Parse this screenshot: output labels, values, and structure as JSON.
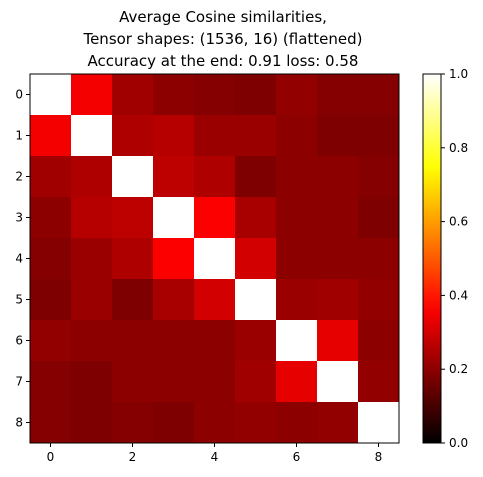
{
  "chart_data": {
    "type": "heatmap",
    "title_lines": [
      "Average Cosine similarities,",
      "Tensor shapes: (1536, 16) (flattened)",
      "Accuracy at the end: 0.91 loss: 0.58"
    ],
    "x_ticks": [
      "0",
      "2",
      "4",
      "6",
      "8"
    ],
    "y_ticks": [
      "0",
      "1",
      "2",
      "3",
      "4",
      "5",
      "6",
      "7",
      "8"
    ],
    "colorbar_ticks": [
      "0.0",
      "0.2",
      "0.4",
      "0.6",
      "0.8",
      "1.0"
    ],
    "colormap": "hot",
    "vmin": 0.0,
    "vmax": 1.0,
    "values": [
      [
        1.0,
        0.35,
        0.23,
        0.2,
        0.19,
        0.18,
        0.21,
        0.19,
        0.19
      ],
      [
        0.35,
        1.0,
        0.25,
        0.26,
        0.22,
        0.22,
        0.2,
        0.18,
        0.18
      ],
      [
        0.23,
        0.25,
        1.0,
        0.27,
        0.25,
        0.18,
        0.2,
        0.2,
        0.19
      ],
      [
        0.2,
        0.26,
        0.27,
        1.0,
        0.36,
        0.24,
        0.2,
        0.2,
        0.18
      ],
      [
        0.19,
        0.22,
        0.25,
        0.36,
        1.0,
        0.3,
        0.2,
        0.2,
        0.2
      ],
      [
        0.18,
        0.22,
        0.18,
        0.24,
        0.3,
        1.0,
        0.22,
        0.23,
        0.21
      ],
      [
        0.21,
        0.2,
        0.2,
        0.2,
        0.2,
        0.22,
        1.0,
        0.33,
        0.2
      ],
      [
        0.19,
        0.18,
        0.2,
        0.2,
        0.2,
        0.23,
        0.33,
        1.0,
        0.21
      ],
      [
        0.19,
        0.18,
        0.19,
        0.18,
        0.2,
        0.21,
        0.2,
        0.21,
        1.0
      ]
    ]
  }
}
